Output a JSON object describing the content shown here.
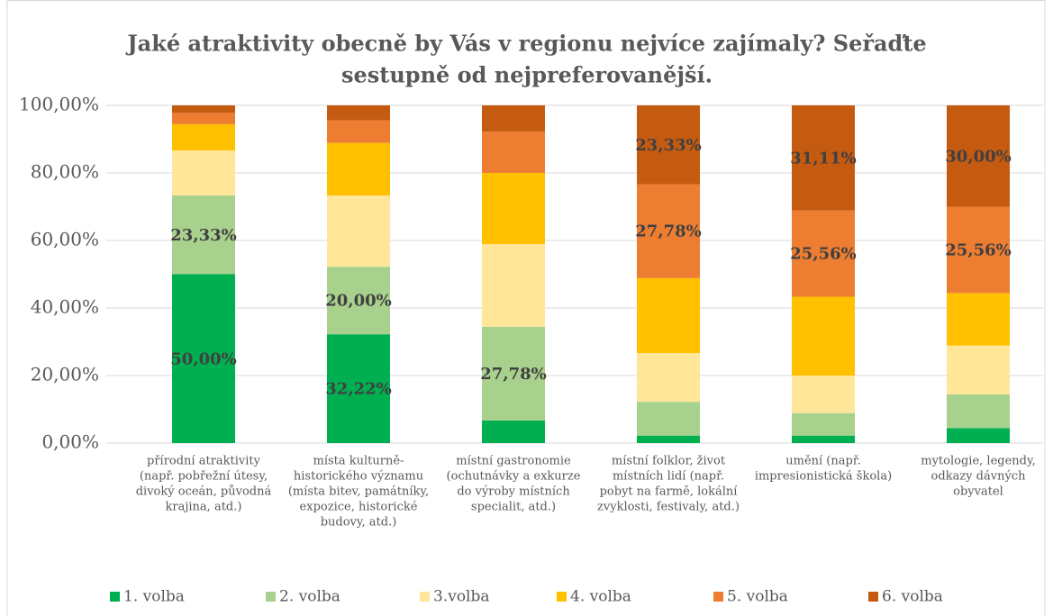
{
  "chart_data": {
    "type": "stacked_bar",
    "title": [
      "Jaké atraktivity obecně by Vás v regionu nejvíce zajímaly? Seřaďte",
      "sestupně od nejpreferovanější."
    ],
    "categories": [
      [
        "přírodní atraktivity",
        "(např. pobřežní útesy,",
        "divoký oceán, původná",
        "krajina, atd.)"
      ],
      [
        "místa kulturně-",
        "historického významu",
        "(místa bitev, památníky,",
        "expozice, historické",
        "budovy, atd.)"
      ],
      [
        "místní gastronomie",
        "(ochutnávky a exkurze",
        "do výroby místních",
        "specialit, atd.)"
      ],
      [
        "místní folklor, život",
        "místních lidí (např.",
        "pobyt na farmě, lokální",
        "zvyklosti, festivaly, atd.)"
      ],
      [
        "umění (např.",
        "impresionistická škola)"
      ],
      [
        "mytologie, legendy,",
        "odkazy dávných",
        "obyvatel"
      ]
    ],
    "series": [
      {
        "name": "1. volba",
        "color": "#00b050",
        "values": [
          50.0,
          32.22,
          6.67,
          2.22,
          2.22,
          4.44
        ],
        "value_labels": [
          "50,00%",
          "32,22%",
          null,
          null,
          null,
          null
        ]
      },
      {
        "name": "2. volba",
        "color": "#a9d18e",
        "values": [
          23.33,
          20.0,
          27.78,
          10.0,
          6.67,
          10.0
        ],
        "value_labels": [
          "23,33%",
          "20,00%",
          "27,78%",
          null,
          null,
          null
        ]
      },
      {
        "name": "3.volba",
        "color": "#ffe699",
        "values": [
          13.33,
          21.11,
          24.44,
          14.44,
          11.11,
          14.44
        ]
      },
      {
        "name": "4. volba",
        "color": "#ffc000",
        "values": [
          7.78,
          15.56,
          21.11,
          22.22,
          23.33,
          15.56
        ]
      },
      {
        "name": "5. volba",
        "color": "#ed7d31",
        "values": [
          3.33,
          6.67,
          12.22,
          27.78,
          25.56,
          25.56
        ],
        "value_labels": [
          null,
          null,
          null,
          "27,78%",
          "25,56%",
          "25,56%"
        ]
      },
      {
        "name": "6. volba",
        "color": "#c55a11",
        "values": [
          2.22,
          4.44,
          7.78,
          23.33,
          31.11,
          30.0
        ],
        "value_labels": [
          null,
          null,
          null,
          "23,33%",
          "31,11%",
          "30,00%"
        ]
      }
    ],
    "ylim": [
      0,
      100
    ],
    "yticks": [
      {
        "value": 0,
        "label": "0,00%"
      },
      {
        "value": 20,
        "label": "20,00%"
      },
      {
        "value": 40,
        "label": "40,00%"
      },
      {
        "value": 60,
        "label": "60,00%"
      },
      {
        "value": 80,
        "label": "80,00%"
      },
      {
        "value": 100,
        "label": "100,00%"
      }
    ],
    "grid": true,
    "legend": "bottom"
  }
}
